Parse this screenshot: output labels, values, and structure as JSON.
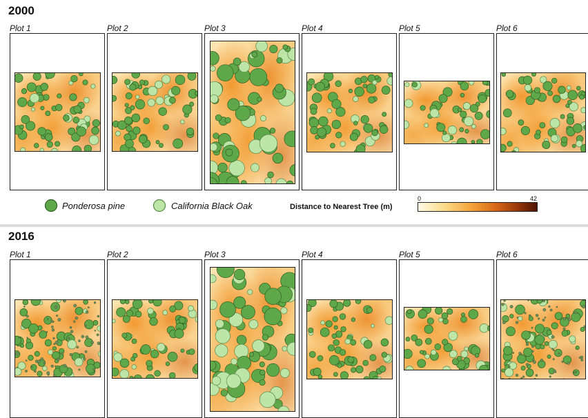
{
  "figure": {
    "sections": [
      {
        "year": "2000",
        "plots": [
          "Plot 1",
          "Plot 2",
          "Plot 3",
          "Plot 4",
          "Plot 5",
          "Plot 6"
        ]
      },
      {
        "year": "2016",
        "plots": [
          "Plot 1",
          "Plot 2",
          "Plot 3",
          "Plot 4",
          "Plot 5",
          "Plot 6"
        ]
      }
    ]
  },
  "legend": {
    "species": [
      {
        "label": "Ponderosa pine",
        "color": "#5fa84a",
        "stroke": "#2e5e22"
      },
      {
        "label": "California Black Oak",
        "color": "#bde5a7",
        "stroke": "#5a8a4a"
      }
    ],
    "colorbar": {
      "title": "Distance to Nearest Tree (m)",
      "min": "0",
      "max": "42",
      "colors": [
        "#fffbe6",
        "#fbdc8a",
        "#f3a33a",
        "#d8691a",
        "#9a3a0a",
        "#4e1503"
      ]
    }
  }
}
